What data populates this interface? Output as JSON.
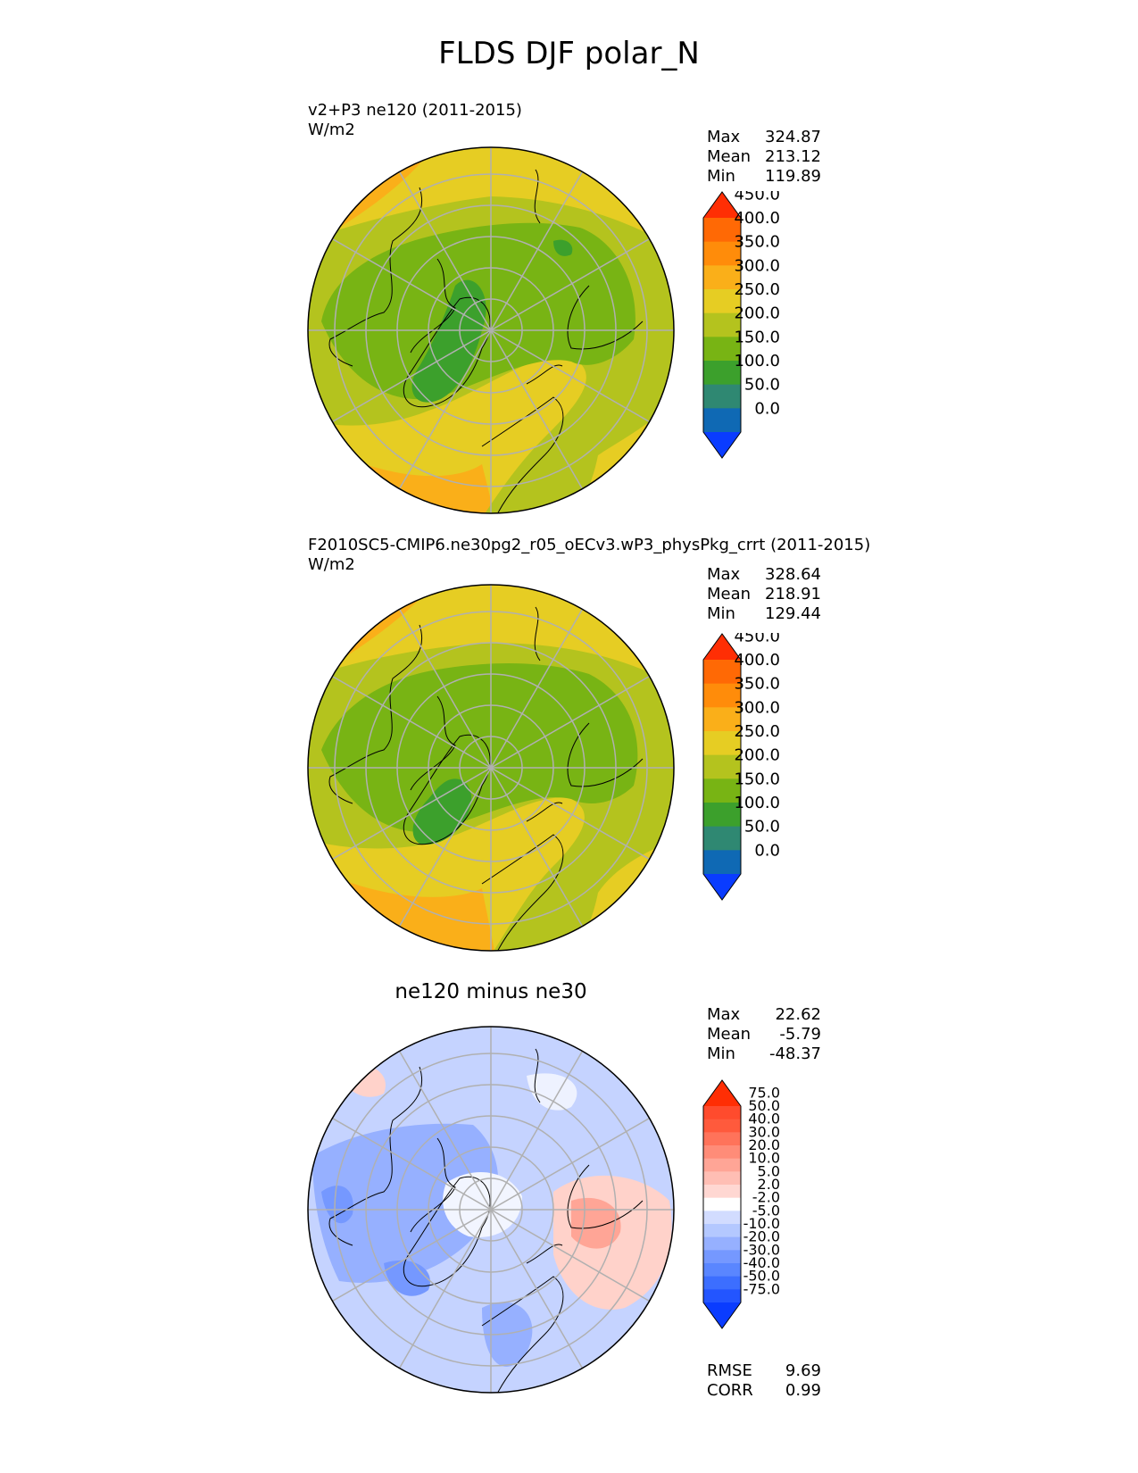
{
  "figure_title": "FLDS DJF polar_N",
  "stat_labels": {
    "max": "Max",
    "mean": "Mean",
    "min": "Min",
    "rmse": "RMSE",
    "corr": "CORR"
  },
  "panels": [
    {
      "id": "test",
      "title": "v2+P3 ne120 (2011-2015)",
      "units": "W/m2",
      "stats": {
        "max": "324.87",
        "mean": "213.12",
        "min": "119.89"
      }
    },
    {
      "id": "ref",
      "title": "F2010SC5-CMIP6.ne30pg2_r05_oECv3.wP3_physPkg_crrt (2011-2015)",
      "units": "W/m2",
      "stats": {
        "max": "328.64",
        "mean": "218.91",
        "min": "129.44"
      }
    },
    {
      "id": "diff",
      "title": "ne120 minus ne30",
      "stats": {
        "max": "22.62",
        "mean": "-5.79",
        "min": "-48.37",
        "rmse": "9.69",
        "corr": "0.99"
      }
    }
  ],
  "chart_data": [
    {
      "type": "heatmap",
      "projection": "north-polar-stereographic",
      "title": "v2+P3 ne120 (2011-2015)",
      "units": "W/m2",
      "colorbar": {
        "levels": [
          0,
          50,
          100,
          150,
          200,
          250,
          300,
          350,
          400,
          450
        ],
        "tick_labels": [
          "0.0",
          "50.0",
          "100.0",
          "150.0",
          "200.0",
          "250.0",
          "300.0",
          "350.0",
          "400.0",
          "450.0"
        ],
        "colors": [
          "#0a3cff",
          "#0f69b4",
          "#2f8872",
          "#3ca02c",
          "#78b414",
          "#b4c31e",
          "#e6cd23",
          "#faaf19",
          "#ff8c0a",
          "#ff6905",
          "#ff2e04"
        ]
      },
      "stats": {
        "max": 324.87,
        "mean": 213.12,
        "min": 119.89
      }
    },
    {
      "type": "heatmap",
      "projection": "north-polar-stereographic",
      "title": "F2010SC5-CMIP6.ne30pg2_r05_oECv3.wP3_physPkg_crrt (2011-2015)",
      "units": "W/m2",
      "colorbar": {
        "levels": [
          0,
          50,
          100,
          150,
          200,
          250,
          300,
          350,
          400,
          450
        ],
        "tick_labels": [
          "0.0",
          "50.0",
          "100.0",
          "150.0",
          "200.0",
          "250.0",
          "300.0",
          "350.0",
          "400.0",
          "450.0"
        ],
        "colors": [
          "#0a3cff",
          "#0f69b4",
          "#2f8872",
          "#3ca02c",
          "#78b414",
          "#b4c31e",
          "#e6cd23",
          "#faaf19",
          "#ff8c0a",
          "#ff6905",
          "#ff2e04"
        ]
      },
      "stats": {
        "max": 328.64,
        "mean": 218.91,
        "min": 129.44
      }
    },
    {
      "type": "heatmap",
      "projection": "north-polar-stereographic",
      "title": "ne120 minus ne30",
      "colorbar": {
        "levels": [
          -75,
          -50,
          -40,
          -30,
          -20,
          -10,
          -5,
          -2,
          2,
          5,
          10,
          20,
          30,
          40,
          50,
          75
        ],
        "tick_labels": [
          "-75.0",
          "-50.0",
          "-40.0",
          "-30.0",
          "-20.0",
          "-10.0",
          "-5.0",
          "-2.0",
          "2.0",
          "5.0",
          "10.0",
          "20.0",
          "30.0",
          "40.0",
          "50.0",
          "75.0"
        ],
        "colors": [
          "#0a3cff",
          "#2355ff",
          "#3c6eff",
          "#5a86ff",
          "#7598ff",
          "#96b0ff",
          "#b4c8ff",
          "#d2dcff",
          "#ffffff",
          "#ffd7d2",
          "#ffbeb4",
          "#ffa596",
          "#ff8c78",
          "#ff735a",
          "#ff5a3c",
          "#ff4b2d",
          "#ff2e04"
        ]
      },
      "stats": {
        "max": 22.62,
        "mean": -5.79,
        "min": -48.37,
        "rmse": 9.69,
        "corr": 0.99
      }
    }
  ]
}
